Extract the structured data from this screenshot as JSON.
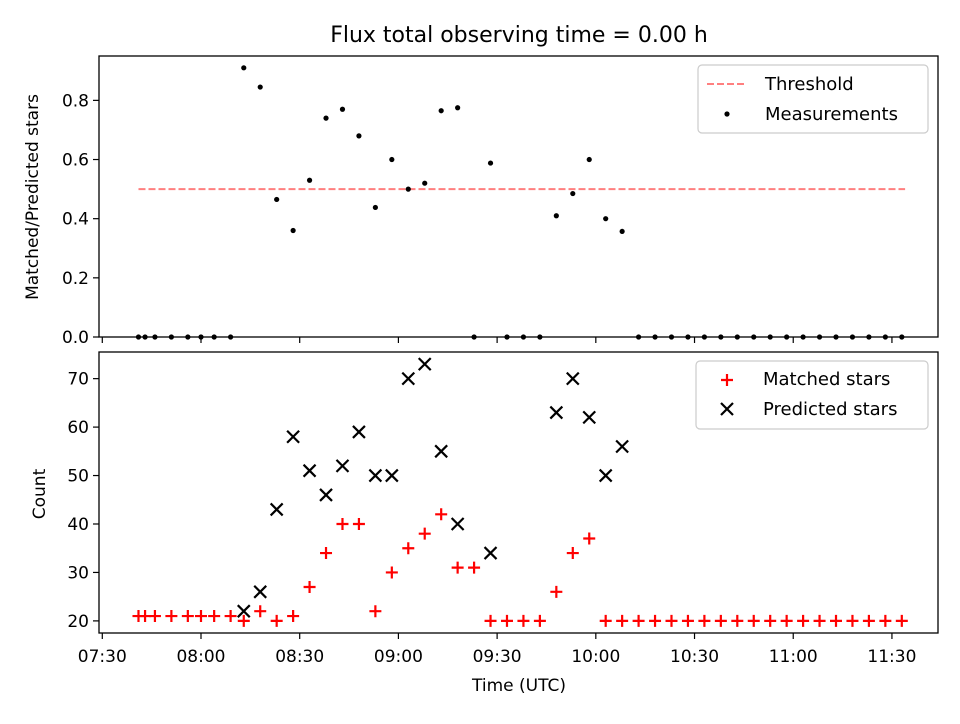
{
  "title": "Flux total observing time = 0.00 h",
  "chart_data": [
    {
      "type": "scatter",
      "ylabel": "Matched/Predicted stars",
      "xlabel": "",
      "ylim": [
        0,
        0.95
      ],
      "yticks": [
        0.0,
        0.2,
        0.4,
        0.6,
        0.8
      ],
      "ytick_labels": [
        "0.0",
        "0.2",
        "0.4",
        "0.6",
        "0.8"
      ],
      "grid": false,
      "legend_position": "top-right",
      "threshold": {
        "name": "Threshold",
        "value": 0.5,
        "x_range": [
          "07:41",
          "11:34"
        ],
        "color": "#ff7f7f",
        "style": "dashed"
      },
      "series": [
        {
          "name": "Measurements",
          "marker": "dot",
          "color": "#000000",
          "points": [
            [
              "07:41",
              0.0
            ],
            [
              "07:43",
              0.0
            ],
            [
              "07:46",
              0.0
            ],
            [
              "07:51",
              0.0
            ],
            [
              "07:56",
              0.0
            ],
            [
              "08:00",
              0.0
            ],
            [
              "08:04",
              0.0
            ],
            [
              "08:09",
              0.0
            ],
            [
              "08:13",
              0.91
            ],
            [
              "08:18",
              0.845
            ],
            [
              "08:23",
              0.465
            ],
            [
              "08:28",
              0.36
            ],
            [
              "08:33",
              0.53
            ],
            [
              "08:38",
              0.74
            ],
            [
              "08:43",
              0.77
            ],
            [
              "08:48",
              0.68
            ],
            [
              "08:53",
              0.438
            ],
            [
              "08:58",
              0.6
            ],
            [
              "09:03",
              0.5
            ],
            [
              "09:08",
              0.52
            ],
            [
              "09:13",
              0.765
            ],
            [
              "09:18",
              0.775
            ],
            [
              "09:23",
              0.0
            ],
            [
              "09:28",
              0.588
            ],
            [
              "09:33",
              0.0
            ],
            [
              "09:38",
              0.0
            ],
            [
              "09:43",
              0.0
            ],
            [
              "09:48",
              0.41
            ],
            [
              "09:53",
              0.485
            ],
            [
              "09:58",
              0.6
            ],
            [
              "10:03",
              0.4
            ],
            [
              "10:08",
              0.357
            ],
            [
              "10:13",
              0.0
            ],
            [
              "10:18",
              0.0
            ],
            [
              "10:23",
              0.0
            ],
            [
              "10:28",
              0.0
            ],
            [
              "10:33",
              0.0
            ],
            [
              "10:38",
              0.0
            ],
            [
              "10:43",
              0.0
            ],
            [
              "10:48",
              0.0
            ],
            [
              "10:53",
              0.0
            ],
            [
              "10:58",
              0.0
            ],
            [
              "11:03",
              0.0
            ],
            [
              "11:08",
              0.0
            ],
            [
              "11:13",
              0.0
            ],
            [
              "11:18",
              0.0
            ],
            [
              "11:23",
              0.0
            ],
            [
              "11:28",
              0.0
            ],
            [
              "11:33",
              0.0
            ]
          ]
        }
      ]
    },
    {
      "type": "scatter",
      "ylabel": "Count",
      "xlabel": "Time (UTC)",
      "ylim": [
        17.5,
        75.5
      ],
      "yticks": [
        20,
        30,
        40,
        50,
        60,
        70
      ],
      "ytick_labels": [
        "20",
        "30",
        "40",
        "50",
        "60",
        "70"
      ],
      "xlim": [
        "07:29",
        "11:44"
      ],
      "xticks": [
        "07:30",
        "08:00",
        "08:30",
        "09:00",
        "09:30",
        "10:00",
        "10:30",
        "11:00",
        "11:30"
      ],
      "xtick_labels": [
        "07:30",
        "08:00",
        "08:30",
        "09:00",
        "09:30",
        "10:00",
        "10:30",
        "11:00",
        "11:30"
      ],
      "grid": false,
      "legend_position": "top-right",
      "series": [
        {
          "name": "Matched stars",
          "marker": "plus",
          "color": "#ff0000",
          "points": [
            [
              "07:41",
              21
            ],
            [
              "07:43",
              21
            ],
            [
              "07:46",
              21
            ],
            [
              "07:51",
              21
            ],
            [
              "07:56",
              21
            ],
            [
              "08:00",
              21
            ],
            [
              "08:04",
              21
            ],
            [
              "08:09",
              21
            ],
            [
              "08:13",
              20
            ],
            [
              "08:18",
              22
            ],
            [
              "08:23",
              20
            ],
            [
              "08:28",
              21
            ],
            [
              "08:33",
              27
            ],
            [
              "08:38",
              34
            ],
            [
              "08:43",
              40
            ],
            [
              "08:48",
              40
            ],
            [
              "08:53",
              22
            ],
            [
              "08:58",
              30
            ],
            [
              "09:03",
              35
            ],
            [
              "09:08",
              38
            ],
            [
              "09:13",
              42
            ],
            [
              "09:18",
              31
            ],
            [
              "09:23",
              31
            ],
            [
              "09:28",
              20
            ],
            [
              "09:33",
              20
            ],
            [
              "09:38",
              20
            ],
            [
              "09:43",
              20
            ],
            [
              "09:48",
              26
            ],
            [
              "09:53",
              34
            ],
            [
              "09:58",
              37
            ],
            [
              "10:03",
              20
            ],
            [
              "10:08",
              20
            ],
            [
              "10:13",
              20
            ],
            [
              "10:18",
              20
            ],
            [
              "10:23",
              20
            ],
            [
              "10:28",
              20
            ],
            [
              "10:33",
              20
            ],
            [
              "10:38",
              20
            ],
            [
              "10:43",
              20
            ],
            [
              "10:48",
              20
            ],
            [
              "10:53",
              20
            ],
            [
              "10:58",
              20
            ],
            [
              "11:03",
              20
            ],
            [
              "11:08",
              20
            ],
            [
              "11:13",
              20
            ],
            [
              "11:18",
              20
            ],
            [
              "11:23",
              20
            ],
            [
              "11:28",
              20
            ],
            [
              "11:33",
              20
            ]
          ]
        },
        {
          "name": "Predicted stars",
          "marker": "x",
          "color": "#000000",
          "points": [
            [
              "08:13",
              22
            ],
            [
              "08:18",
              26
            ],
            [
              "08:23",
              43
            ],
            [
              "08:28",
              58
            ],
            [
              "08:33",
              51
            ],
            [
              "08:38",
              46
            ],
            [
              "08:43",
              52
            ],
            [
              "08:48",
              59
            ],
            [
              "08:53",
              50
            ],
            [
              "08:58",
              50
            ],
            [
              "09:03",
              70
            ],
            [
              "09:08",
              73
            ],
            [
              "09:13",
              55
            ],
            [
              "09:18",
              40
            ],
            [
              "09:28",
              34
            ],
            [
              "09:48",
              63
            ],
            [
              "09:53",
              70
            ],
            [
              "09:58",
              62
            ],
            [
              "10:03",
              50
            ],
            [
              "10:08",
              56
            ]
          ]
        }
      ]
    }
  ]
}
